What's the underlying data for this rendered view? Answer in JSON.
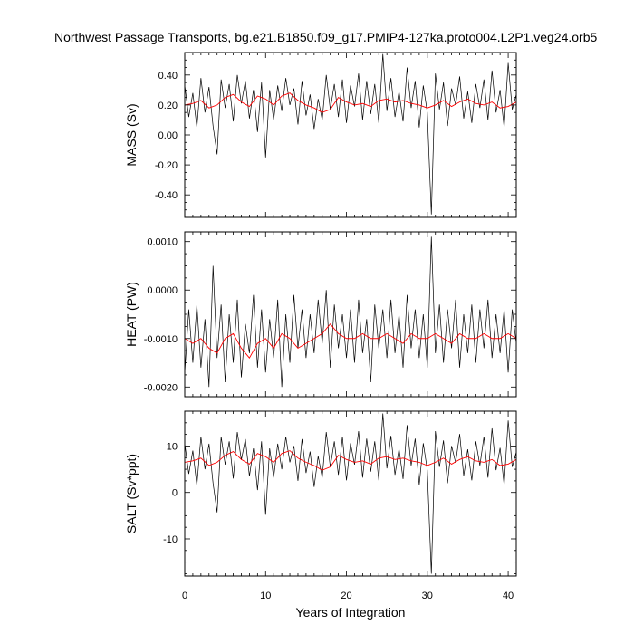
{
  "title": "Northwest Passage Transports, bg.e21.B1850.f09_g17.PMIP4-127ka.proto004.L2P1.veg24.orb5",
  "xlabel": "Years of Integration",
  "colors": {
    "raw": "#000000",
    "smooth": "#ff0000",
    "frame": "#000000"
  },
  "chart_data": [
    {
      "type": "line",
      "ylabel": "MASS (Sv)",
      "xlim": [
        0,
        41
      ],
      "ylim": [
        -0.55,
        0.55
      ],
      "xticks": [
        0,
        10,
        20,
        30,
        40
      ],
      "xtick_labels": [
        "0",
        "10",
        "20",
        "30",
        "40"
      ],
      "yticks": [
        -0.4,
        -0.2,
        0.0,
        0.2,
        0.4
      ],
      "ytick_labels": [
        "-0.40",
        "-0.20",
        "0.00",
        "0.20",
        "0.40"
      ],
      "series": [
        {
          "x": [
            0,
            0.5,
            1,
            1.5,
            2,
            2.5,
            3,
            3.5,
            4,
            4.5,
            5,
            5.5,
            6,
            6.5,
            7,
            7.5,
            8,
            8.5,
            9,
            9.5,
            10,
            10.5,
            11,
            11.5,
            12,
            12.5,
            13,
            13.5,
            14,
            14.5,
            15,
            15.5,
            16,
            16.5,
            17,
            17.5,
            18,
            18.5,
            19,
            19.5,
            20,
            20.5,
            21,
            21.5,
            22,
            22.5,
            23,
            23.5,
            24,
            24.5,
            25,
            25.5,
            26,
            26.5,
            27,
            27.5,
            28,
            28.5,
            29,
            29.5,
            30,
            30.5,
            31,
            31.5,
            32,
            32.5,
            33,
            33.5,
            34,
            34.5,
            35,
            35.5,
            36,
            36.5,
            37,
            37.5,
            38,
            38.5,
            39,
            39.5,
            40,
            40.5,
            41
          ],
          "y": [
            0.33,
            0.12,
            0.28,
            0.05,
            0.38,
            0.15,
            0.32,
            0.06,
            -0.13,
            0.37,
            0.18,
            0.34,
            0.09,
            0.4,
            0.21,
            0.36,
            0.11,
            0.3,
            0.02,
            0.35,
            -0.15,
            0.3,
            0.1,
            0.33,
            0.16,
            0.38,
            0.2,
            0.31,
            0.07,
            0.36,
            0.13,
            0.27,
            0.04,
            0.24,
            0.1,
            0.4,
            0.17,
            0.34,
            0.12,
            0.37,
            0.08,
            0.33,
            0.19,
            0.41,
            0.1,
            0.36,
            0.14,
            0.34,
            0.08,
            0.54,
            0.16,
            0.38,
            0.12,
            0.29,
            0.09,
            0.45,
            0.18,
            0.36,
            0.05,
            0.33,
            0.15,
            -0.53,
            0.41,
            0.17,
            0.35,
            0.06,
            0.31,
            0.2,
            0.39,
            0.11,
            0.29,
            0.08,
            0.34,
            0.18,
            0.37,
            0.1,
            0.43,
            0.15,
            0.3,
            0.05,
            0.48,
            0.17,
            0.27
          ]
        },
        {
          "x": [
            0,
            1,
            2,
            3,
            4,
            5,
            6,
            7,
            8,
            9,
            10,
            11,
            12,
            13,
            14,
            15,
            16,
            17,
            18,
            19,
            20,
            21,
            22,
            23,
            24,
            25,
            26,
            27,
            28,
            29,
            30,
            31,
            32,
            33,
            34,
            35,
            36,
            37,
            38,
            39,
            40,
            41
          ],
          "y": [
            0.2,
            0.21,
            0.23,
            0.18,
            0.2,
            0.25,
            0.27,
            0.22,
            0.19,
            0.26,
            0.24,
            0.2,
            0.26,
            0.28,
            0.23,
            0.2,
            0.18,
            0.15,
            0.17,
            0.25,
            0.22,
            0.2,
            0.21,
            0.19,
            0.23,
            0.24,
            0.22,
            0.23,
            0.21,
            0.2,
            0.18,
            0.2,
            0.23,
            0.19,
            0.22,
            0.24,
            0.21,
            0.2,
            0.22,
            0.18,
            0.19,
            0.22
          ]
        }
      ]
    },
    {
      "type": "line",
      "ylabel": "HEAT (PW)",
      "xlim": [
        0,
        41
      ],
      "ylim": [
        -0.0022,
        0.0012
      ],
      "xticks": [
        0,
        10,
        20,
        30,
        40
      ],
      "xtick_labels": [
        "0",
        "10",
        "20",
        "30",
        "40"
      ],
      "yticks": [
        -0.002,
        -0.001,
        0.0,
        0.001
      ],
      "ytick_labels": [
        "-0.0020",
        "-0.0010",
        "0.0000",
        "0.0010"
      ],
      "series": [
        {
          "x": [
            0,
            0.5,
            1,
            1.5,
            2,
            2.5,
            3,
            3.5,
            4,
            4.5,
            5,
            5.5,
            6,
            6.5,
            7,
            7.5,
            8,
            8.5,
            9,
            9.5,
            10,
            10.5,
            11,
            11.5,
            12,
            12.5,
            13,
            13.5,
            14,
            14.5,
            15,
            15.5,
            16,
            16.5,
            17,
            17.5,
            18,
            18.5,
            19,
            19.5,
            20,
            20.5,
            21,
            21.5,
            22,
            22.5,
            23,
            23.5,
            24,
            24.5,
            25,
            25.5,
            26,
            26.5,
            27,
            27.5,
            28,
            28.5,
            29,
            29.5,
            30,
            30.5,
            31,
            31.5,
            32,
            32.5,
            33,
            33.5,
            34,
            34.5,
            35,
            35.5,
            36,
            36.5,
            37,
            37.5,
            38,
            38.5,
            39,
            39.5,
            40,
            40.5,
            41
          ],
          "y": [
            -0.0017,
            -0.0004,
            -0.0015,
            -0.0003,
            -0.0016,
            -0.0006,
            -0.002,
            0.0005,
            -0.0014,
            -0.0003,
            -0.0019,
            -0.0005,
            -0.0015,
            -0.0002,
            -0.0018,
            -0.0007,
            -0.0013,
            -0.0001,
            -0.0016,
            -0.0004,
            -0.0017,
            -0.0006,
            -0.0014,
            -0.0002,
            -0.002,
            -0.0005,
            -0.0015,
            -0.0001,
            -0.0012,
            -0.0004,
            -0.0014,
            -0.0005,
            -0.0013,
            -0.0002,
            -0.0011,
            0.0,
            -0.0016,
            -0.0003,
            -0.0012,
            -0.0005,
            -0.0014,
            -0.0004,
            -0.0015,
            -0.0002,
            -0.0013,
            -0.0006,
            -0.0019,
            -0.0003,
            -0.0012,
            -0.0004,
            -0.0014,
            -0.0002,
            -0.0013,
            -0.0005,
            -0.0016,
            -0.0001,
            -0.0012,
            -0.0004,
            -0.0014,
            -0.0005,
            -0.0016,
            0.0011,
            -0.0013,
            -0.0003,
            -0.0015,
            -0.0004,
            -0.0012,
            -0.0002,
            -0.0016,
            -0.0005,
            -0.0013,
            -0.0003,
            -0.0015,
            -0.0004,
            -0.0012,
            -0.0002,
            -0.0014,
            -0.0005,
            -0.0013,
            -0.0004,
            -0.0017,
            -0.0004,
            -0.0011
          ]
        },
        {
          "x": [
            0,
            1,
            2,
            3,
            4,
            5,
            6,
            7,
            8,
            9,
            10,
            11,
            12,
            13,
            14,
            15,
            16,
            17,
            18,
            19,
            20,
            21,
            22,
            23,
            24,
            25,
            26,
            27,
            28,
            29,
            30,
            31,
            32,
            33,
            34,
            35,
            36,
            37,
            38,
            39,
            40,
            41
          ],
          "y": [
            -0.001,
            -0.0011,
            -0.001,
            -0.0012,
            -0.0013,
            -0.001,
            -0.0009,
            -0.0012,
            -0.0014,
            -0.0011,
            -0.001,
            -0.0012,
            -0.0009,
            -0.001,
            -0.0012,
            -0.0011,
            -0.001,
            -0.0009,
            -0.0007,
            -0.0009,
            -0.001,
            -0.001,
            -0.0009,
            -0.001,
            -0.001,
            -0.0009,
            -0.001,
            -0.0011,
            -0.0009,
            -0.001,
            -0.001,
            -0.0009,
            -0.001,
            -0.0011,
            -0.0009,
            -0.001,
            -0.001,
            -0.0009,
            -0.001,
            -0.001,
            -0.0009,
            -0.001
          ]
        }
      ]
    },
    {
      "type": "line",
      "ylabel": "SALT (Sv*ppt)",
      "xlim": [
        0,
        41
      ],
      "ylim": [
        -18,
        17.5
      ],
      "xticks": [
        0,
        10,
        20,
        30,
        40
      ],
      "xtick_labels": [
        "0",
        "10",
        "20",
        "30",
        "40"
      ],
      "yticks": [
        -10,
        0,
        10
      ],
      "ytick_labels": [
        "-10",
        "0",
        "10"
      ],
      "series": [
        {
          "x": [
            0,
            0.5,
            1,
            1.5,
            2,
            2.5,
            3,
            3.5,
            4,
            4.5,
            5,
            5.5,
            6,
            6.5,
            7,
            7.5,
            8,
            8.5,
            9,
            9.5,
            10,
            10.5,
            11,
            11.5,
            12,
            12.5,
            13,
            13.5,
            14,
            14.5,
            15,
            15.5,
            16,
            16.5,
            17,
            17.5,
            18,
            18.5,
            19,
            19.5,
            20,
            20.5,
            21,
            21.5,
            22,
            22.5,
            23,
            23.5,
            24,
            24.5,
            25,
            25.5,
            26,
            26.5,
            27,
            27.5,
            28,
            28.5,
            29,
            29.5,
            30,
            30.5,
            31,
            31.5,
            32,
            32.5,
            33,
            33.5,
            34,
            34.5,
            35,
            35.5,
            36,
            36.5,
            37,
            37.5,
            38,
            38.5,
            39,
            39.5,
            40,
            40.5,
            41
          ],
          "y": [
            10.5,
            4.0,
            9.0,
            1.5,
            12.0,
            5.0,
            10.5,
            2.0,
            -4.3,
            12.0,
            6.0,
            11.0,
            3.0,
            13.0,
            7.0,
            11.5,
            3.5,
            9.5,
            0.5,
            11.0,
            -4.8,
            9.5,
            3.2,
            10.5,
            5.0,
            12.0,
            6.5,
            10.0,
            2.5,
            11.5,
            4.2,
            8.8,
            1.2,
            7.8,
            3.2,
            13.0,
            5.5,
            11.0,
            3.8,
            12.0,
            2.6,
            10.6,
            6.0,
            13.2,
            3.2,
            11.6,
            4.5,
            11.0,
            2.6,
            17.0,
            5.2,
            12.2,
            3.8,
            9.4,
            2.9,
            14.5,
            5.8,
            11.6,
            1.6,
            10.6,
            4.8,
            -17.5,
            13.2,
            5.5,
            11.2,
            2.0,
            10.0,
            6.4,
            12.6,
            3.6,
            9.3,
            2.6,
            11.0,
            5.8,
            12.0,
            3.2,
            13.8,
            4.8,
            9.6,
            1.6,
            15.5,
            5.5,
            8.7
          ]
        },
        {
          "x": [
            0,
            1,
            2,
            3,
            4,
            5,
            6,
            7,
            8,
            9,
            10,
            11,
            12,
            13,
            14,
            15,
            16,
            17,
            18,
            19,
            20,
            21,
            22,
            23,
            24,
            25,
            26,
            27,
            28,
            29,
            30,
            31,
            32,
            33,
            34,
            35,
            36,
            37,
            38,
            39,
            40,
            41
          ],
          "y": [
            6.5,
            6.8,
            7.4,
            5.8,
            6.5,
            8.0,
            8.8,
            7.1,
            6.1,
            8.4,
            7.7,
            6.5,
            8.4,
            9.0,
            7.4,
            6.5,
            5.8,
            4.8,
            5.5,
            8.0,
            7.1,
            6.5,
            6.8,
            6.1,
            7.4,
            7.7,
            7.1,
            7.4,
            6.8,
            6.5,
            5.8,
            6.5,
            7.4,
            6.1,
            7.1,
            7.7,
            6.8,
            6.5,
            7.1,
            5.8,
            6.1,
            7.1
          ]
        }
      ]
    }
  ]
}
